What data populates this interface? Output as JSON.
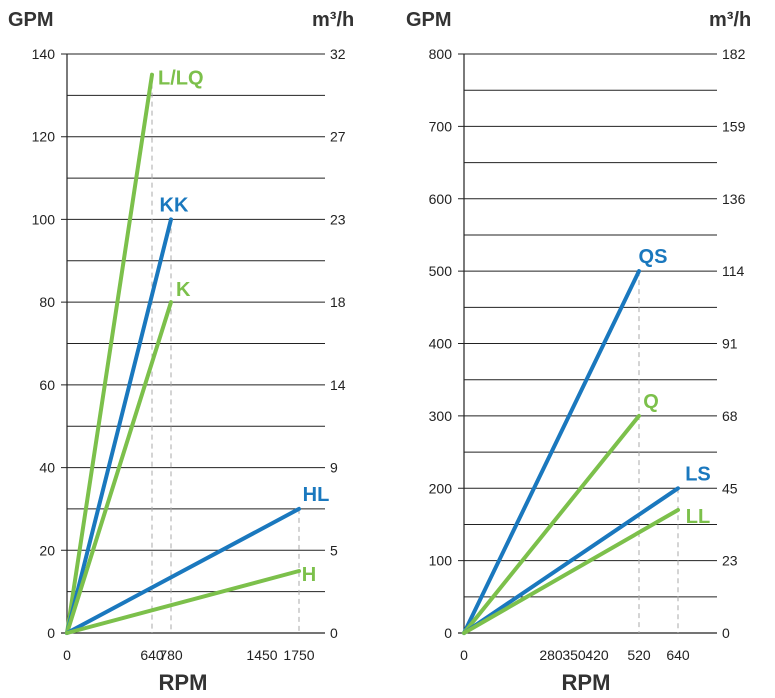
{
  "colors": {
    "blue": "#1a78be",
    "green": "#7cc04b"
  },
  "chart_data": [
    {
      "type": "line",
      "left_axis_label": "GPM",
      "right_axis_label": "m³/h",
      "xlabel": "RPM",
      "xlim": [
        0,
        1900
      ],
      "ylim": [
        0,
        140
      ],
      "y_ticks": [
        0,
        20,
        40,
        60,
        80,
        100,
        120,
        140
      ],
      "y_right_ticks": [
        "0",
        "5",
        "9",
        "14",
        "18",
        "23",
        "27",
        "32"
      ],
      "x_ticks": [
        {
          "value": 0,
          "label": "0"
        },
        {
          "value": 640,
          "label": "640"
        },
        {
          "value": 780,
          "label": "780"
        },
        {
          "value": 1450,
          "label": "1450"
        },
        {
          "value": 1750,
          "label": "1750"
        }
      ],
      "grid": true,
      "series": [
        {
          "name": "L/LQ",
          "color": "green",
          "x": [
            0,
            640
          ],
          "y": [
            0,
            135
          ]
        },
        {
          "name": "KK",
          "color": "blue",
          "x": [
            0,
            780
          ],
          "y": [
            0,
            100
          ]
        },
        {
          "name": "K",
          "color": "green",
          "x": [
            0,
            780
          ],
          "y": [
            0,
            80
          ]
        },
        {
          "name": "HL",
          "color": "blue",
          "x": [
            0,
            1750
          ],
          "y": [
            0,
            30
          ]
        },
        {
          "name": "H",
          "color": "green",
          "x": [
            0,
            1750
          ],
          "y": [
            0,
            15
          ]
        }
      ]
    },
    {
      "type": "line",
      "left_axis_label": "GPM",
      "right_axis_label": "m³/h",
      "xlabel": "RPM",
      "xlim": [
        0,
        800
      ],
      "ylim": [
        0,
        800
      ],
      "y_ticks": [
        0,
        100,
        200,
        300,
        400,
        500,
        600,
        700,
        800
      ],
      "y_right_ticks": [
        "0",
        "23",
        "45",
        "68",
        "91",
        "114",
        "136",
        "159",
        "182"
      ],
      "x_ticks": [
        {
          "value": 0,
          "label": "0"
        },
        {
          "value": 280,
          "label": "280"
        },
        {
          "value": 350,
          "label": "350"
        },
        {
          "value": 420,
          "label": "420"
        },
        {
          "value": 520,
          "label": "520"
        },
        {
          "value": 640,
          "label": "640"
        }
      ],
      "grid": true,
      "series": [
        {
          "name": "QS",
          "color": "blue",
          "x": [
            0,
            520
          ],
          "y": [
            0,
            500
          ]
        },
        {
          "name": "Q",
          "color": "green",
          "x": [
            0,
            520
          ],
          "y": [
            0,
            300
          ]
        },
        {
          "name": "LS",
          "color": "blue",
          "x": [
            0,
            640
          ],
          "y": [
            0,
            200
          ]
        },
        {
          "name": "LL",
          "color": "green",
          "x": [
            0,
            640
          ],
          "y": [
            0,
            170
          ]
        }
      ]
    }
  ]
}
